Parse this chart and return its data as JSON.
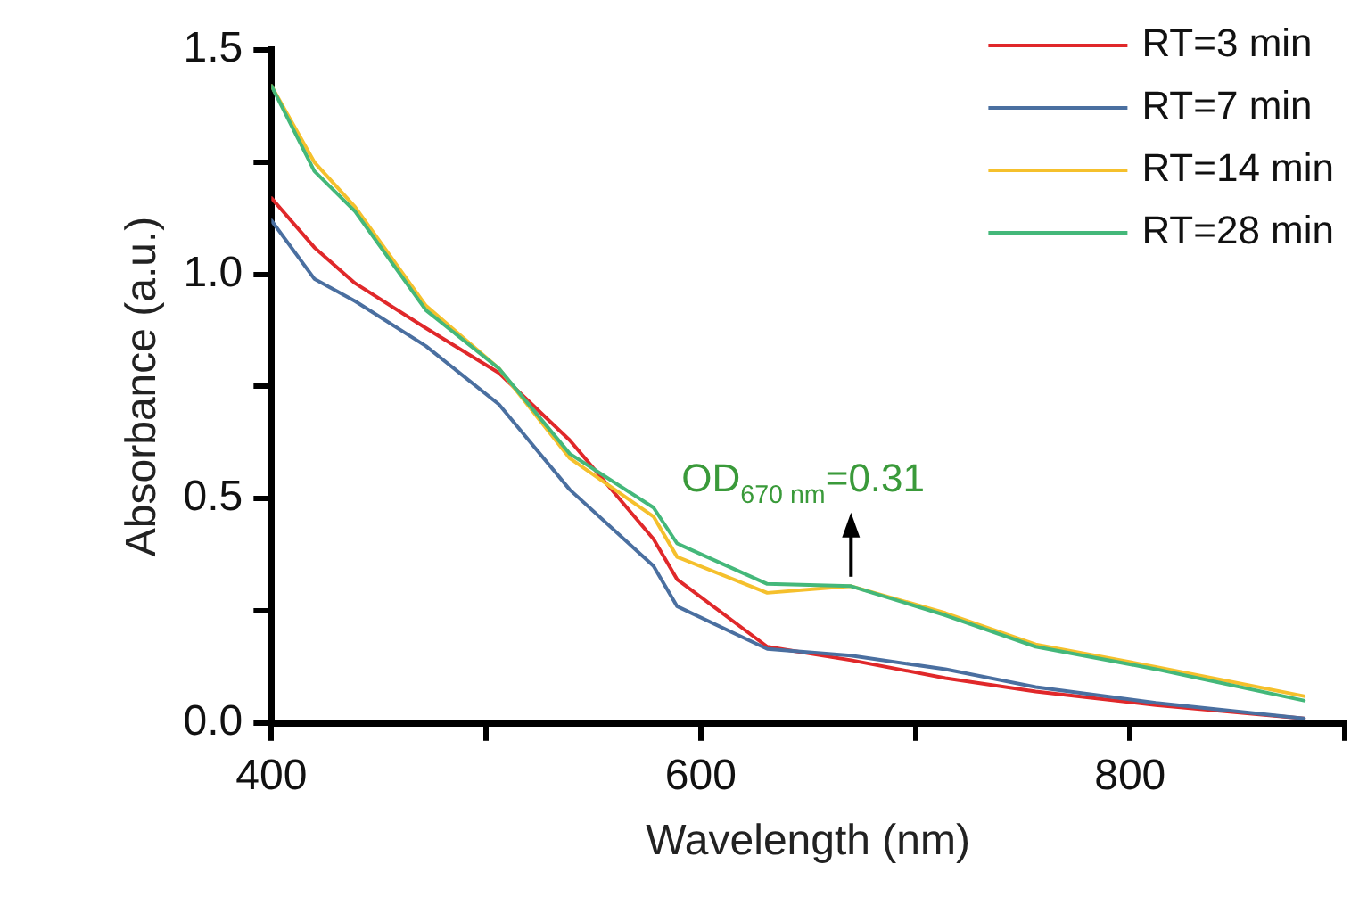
{
  "chart_data": {
    "type": "line",
    "xlabel": "Wavelength (nm)",
    "ylabel": "Absorbance (a.u.)",
    "xlim": [
      400,
      900
    ],
    "xticks": [
      400,
      {
        "value": 500,
        "label": null
      },
      600,
      {
        "value": 700,
        "label": null
      },
      800,
      {
        "value": 900,
        "label": null
      }
    ],
    "ylim": [
      0,
      1.5
    ],
    "yticks": [
      {
        "value": 0,
        "label": "0.0"
      },
      {
        "value": 0.25,
        "label": null
      },
      0.5,
      {
        "value": 0.75,
        "label": null
      },
      {
        "value": 1,
        "label": "1.0"
      },
      {
        "value": 1.25,
        "label": null
      },
      1.5
    ],
    "grid": false,
    "legend": "top right",
    "marker": "none",
    "line_style": "solid",
    "annotations": [
      {
        "text": "OD$_{670 nm}$=0.31",
        "x": 670,
        "y": 0.31
      }
    ],
    "series": [
      {
        "name": "RT=3 min",
        "color": "#e0282a",
        "x": [
          400,
          420,
          439,
          472,
          506,
          539,
          578,
          589,
          631,
          670,
          714,
          756,
          812,
          881
        ],
        "values": [
          1.17,
          1.06,
          0.98,
          0.88,
          0.78,
          0.63,
          0.41,
          0.32,
          0.17,
          0.14,
          0.1,
          0.07,
          0.04,
          0.01
        ]
      },
      {
        "name": "RT=7 min",
        "color": "#4a6fa0",
        "x": [
          400,
          420,
          439,
          472,
          506,
          539,
          578,
          589,
          631,
          670,
          714,
          756,
          812,
          881
        ],
        "values": [
          1.12,
          0.99,
          0.94,
          0.84,
          0.71,
          0.52,
          0.35,
          0.26,
          0.165,
          0.15,
          0.12,
          0.08,
          0.045,
          0.01
        ]
      },
      {
        "name": "RT=14 min",
        "color": "#f5c02c",
        "x": [
          400,
          420,
          439,
          472,
          506,
          539,
          578,
          589,
          631,
          670,
          714,
          756,
          812,
          881
        ],
        "values": [
          1.42,
          1.25,
          1.15,
          0.93,
          0.79,
          0.59,
          0.46,
          0.37,
          0.29,
          0.305,
          0.245,
          0.175,
          0.125,
          0.06
        ]
      },
      {
        "name": "RT=28 min",
        "color": "#44b87a",
        "x": [
          400,
          420,
          439,
          472,
          506,
          539,
          578,
          589,
          631,
          670,
          714,
          756,
          812,
          881
        ],
        "values": [
          1.42,
          1.23,
          1.14,
          0.92,
          0.79,
          0.6,
          0.48,
          0.4,
          0.31,
          0.305,
          0.24,
          0.17,
          0.12,
          0.05
        ]
      }
    ]
  }
}
